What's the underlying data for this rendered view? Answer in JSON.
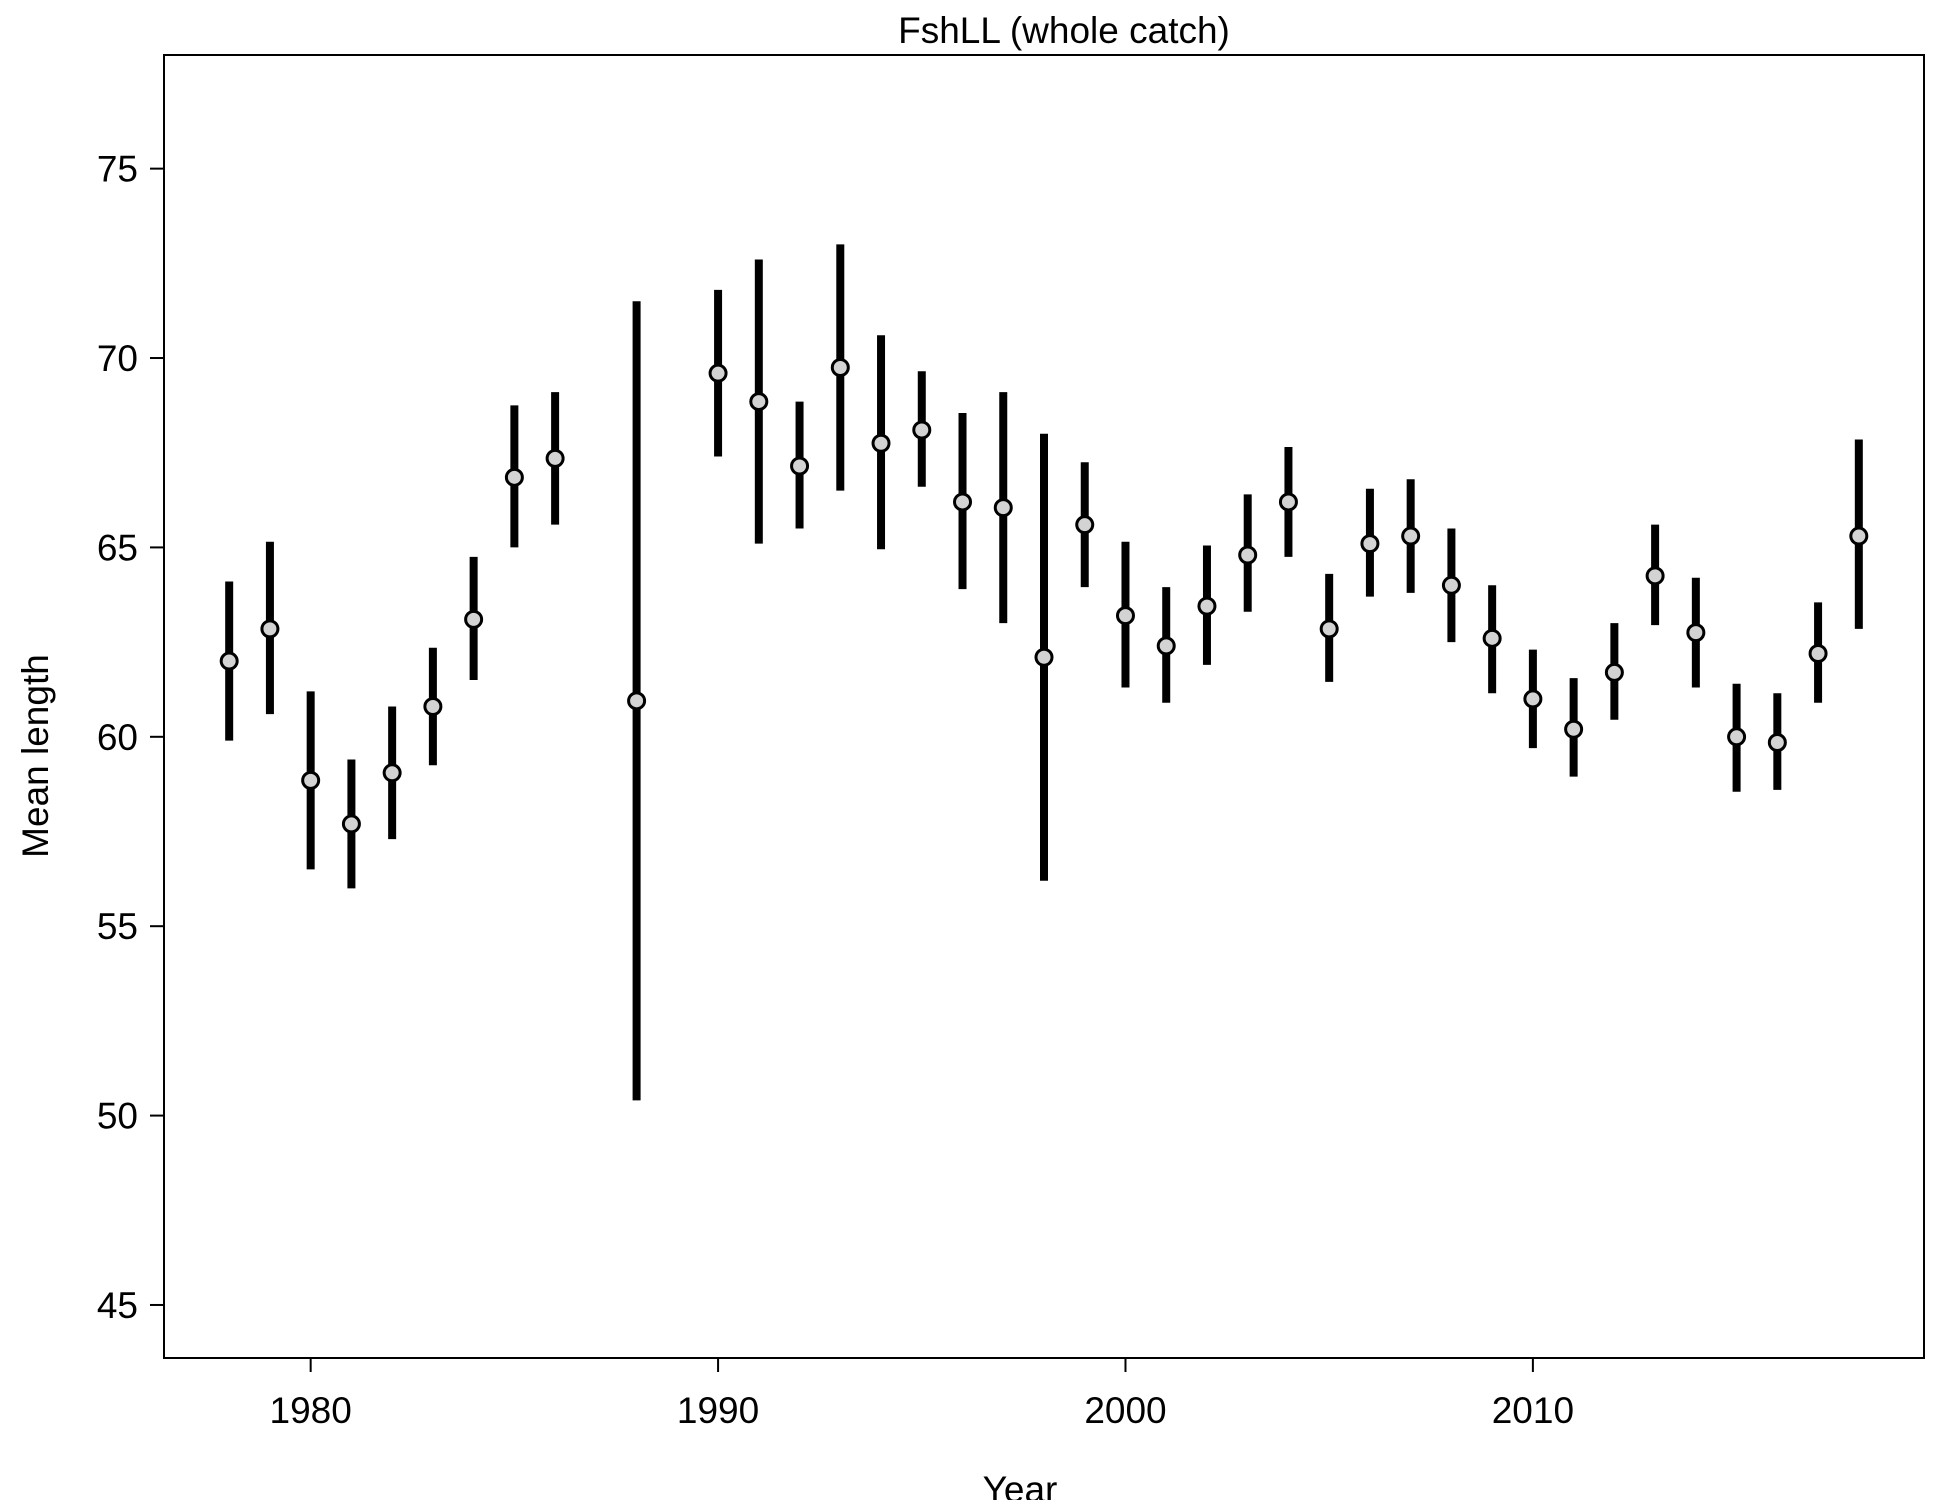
{
  "chart_data": {
    "type": "scatter",
    "title": "FshLL (whole catch)",
    "xlabel": "Year",
    "ylabel": "Mean length",
    "xlim": [
      1976.4,
      2019.6
    ],
    "ylim": [
      43.6,
      78.0
    ],
    "x_ticks": [
      "1980",
      "1990",
      "2000",
      "2010"
    ],
    "y_ticks": [
      "45",
      "50",
      "55",
      "60",
      "65",
      "70",
      "75"
    ],
    "grid": false,
    "legend": "none",
    "error_bars": true,
    "marker_fill": "#d3d3d3",
    "marker_stroke": "#000000",
    "bar_color": "#000000",
    "points": [
      {
        "x": 1978,
        "y": 62.0,
        "lo": 59.9,
        "hi": 64.1
      },
      {
        "x": 1979,
        "y": 62.85,
        "lo": 60.6,
        "hi": 65.15
      },
      {
        "x": 1980,
        "y": 58.85,
        "lo": 56.5,
        "hi": 61.2
      },
      {
        "x": 1981,
        "y": 57.7,
        "lo": 56.0,
        "hi": 59.4
      },
      {
        "x": 1982,
        "y": 59.05,
        "lo": 57.3,
        "hi": 60.8
      },
      {
        "x": 1983,
        "y": 60.8,
        "lo": 59.25,
        "hi": 62.35
      },
      {
        "x": 1984,
        "y": 63.1,
        "lo": 61.5,
        "hi": 64.75
      },
      {
        "x": 1985,
        "y": 66.85,
        "lo": 65.0,
        "hi": 68.75
      },
      {
        "x": 1986,
        "y": 67.35,
        "lo": 65.6,
        "hi": 69.1
      },
      {
        "x": 1988,
        "y": 60.95,
        "lo": 50.4,
        "hi": 71.5
      },
      {
        "x": 1990,
        "y": 69.6,
        "lo": 67.4,
        "hi": 71.8
      },
      {
        "x": 1991,
        "y": 68.85,
        "lo": 65.1,
        "hi": 72.6
      },
      {
        "x": 1992,
        "y": 67.15,
        "lo": 65.5,
        "hi": 68.85
      },
      {
        "x": 1993,
        "y": 69.75,
        "lo": 66.5,
        "hi": 73.0
      },
      {
        "x": 1994,
        "y": 67.75,
        "lo": 64.95,
        "hi": 70.6
      },
      {
        "x": 1995,
        "y": 68.1,
        "lo": 66.6,
        "hi": 69.65
      },
      {
        "x": 1996,
        "y": 66.2,
        "lo": 63.9,
        "hi": 68.55
      },
      {
        "x": 1997,
        "y": 66.05,
        "lo": 63.0,
        "hi": 69.1
      },
      {
        "x": 1998,
        "y": 62.1,
        "lo": 56.2,
        "hi": 68.0
      },
      {
        "x": 1999,
        "y": 65.6,
        "lo": 63.95,
        "hi": 67.25
      },
      {
        "x": 2000,
        "y": 63.2,
        "lo": 61.3,
        "hi": 65.15
      },
      {
        "x": 2001,
        "y": 62.4,
        "lo": 60.9,
        "hi": 63.95
      },
      {
        "x": 2002,
        "y": 63.45,
        "lo": 61.9,
        "hi": 65.05
      },
      {
        "x": 2003,
        "y": 64.8,
        "lo": 63.3,
        "hi": 66.4
      },
      {
        "x": 2004,
        "y": 66.2,
        "lo": 64.75,
        "hi": 67.65
      },
      {
        "x": 2005,
        "y": 62.85,
        "lo": 61.45,
        "hi": 64.3
      },
      {
        "x": 2006,
        "y": 65.1,
        "lo": 63.7,
        "hi": 66.55
      },
      {
        "x": 2007,
        "y": 65.3,
        "lo": 63.8,
        "hi": 66.8
      },
      {
        "x": 2008,
        "y": 64.0,
        "lo": 62.5,
        "hi": 65.5
      },
      {
        "x": 2009,
        "y": 62.6,
        "lo": 61.15,
        "hi": 64.0
      },
      {
        "x": 2010,
        "y": 61.0,
        "lo": 59.7,
        "hi": 62.3
      },
      {
        "x": 2011,
        "y": 60.2,
        "lo": 58.95,
        "hi": 61.55
      },
      {
        "x": 2012,
        "y": 61.7,
        "lo": 60.45,
        "hi": 63.0
      },
      {
        "x": 2013,
        "y": 64.25,
        "lo": 62.95,
        "hi": 65.6
      },
      {
        "x": 2014,
        "y": 62.75,
        "lo": 61.3,
        "hi": 64.2
      },
      {
        "x": 2015,
        "y": 60.0,
        "lo": 58.55,
        "hi": 61.4
      },
      {
        "x": 2016,
        "y": 59.85,
        "lo": 58.6,
        "hi": 61.15
      },
      {
        "x": 2017,
        "y": 62.2,
        "lo": 60.9,
        "hi": 63.55
      },
      {
        "x": 2018,
        "y": 65.3,
        "lo": 62.85,
        "hi": 67.85
      }
    ]
  }
}
